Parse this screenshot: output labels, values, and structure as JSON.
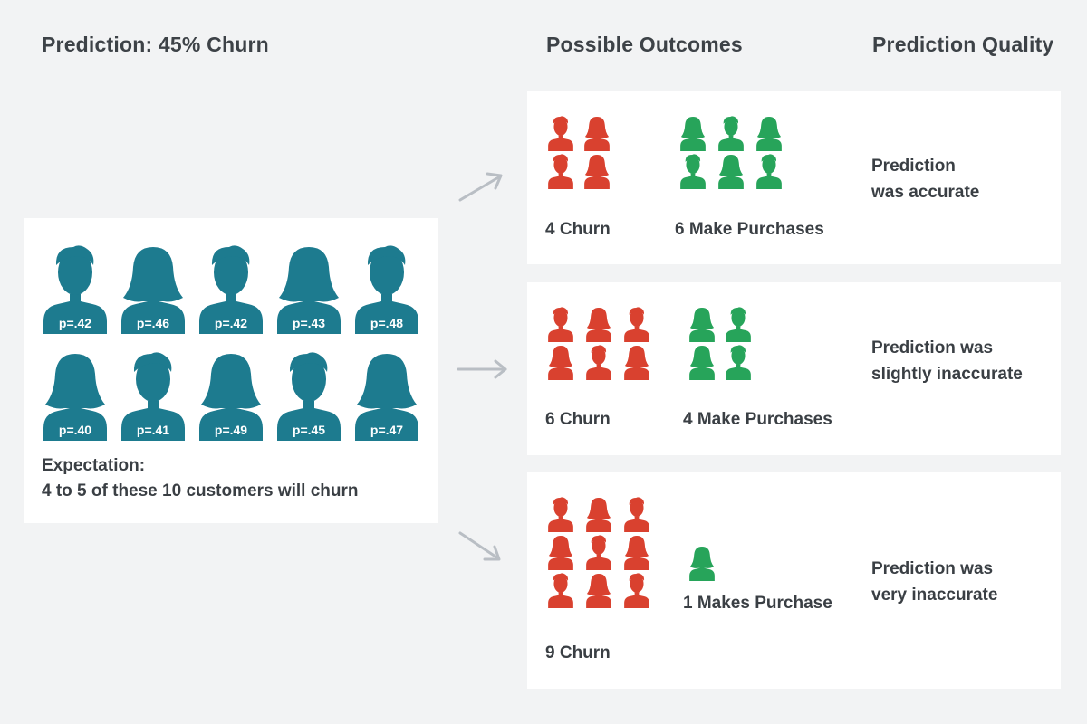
{
  "headings": {
    "prediction": "Prediction: 45% Churn",
    "outcomes": "Possible Outcomes",
    "quality": "Prediction Quality"
  },
  "colors": {
    "customer": "#1d7b8f",
    "churn": "#d9412f",
    "purchase": "#27a45a",
    "arrow": "#b9bec4",
    "panel": "#ffffff",
    "background": "#f2f3f4"
  },
  "customers": [
    {
      "p": "p=.42",
      "icon": "male-icon"
    },
    {
      "p": "p=.46",
      "icon": "female-icon"
    },
    {
      "p": "p=.42",
      "icon": "male-icon"
    },
    {
      "p": "p=.43",
      "icon": "female-icon"
    },
    {
      "p": "p=.48",
      "icon": "male-icon"
    },
    {
      "p": "p=.40",
      "icon": "female-icon"
    },
    {
      "p": "p=.41",
      "icon": "male-icon"
    },
    {
      "p": "p=.49",
      "icon": "female-icon"
    },
    {
      "p": "p=.45",
      "icon": "male-icon"
    },
    {
      "p": "p=.47",
      "icon": "female-icon"
    }
  ],
  "expectation": {
    "line1": "Expectation:",
    "line2": "4 to 5 of these 10 customers will churn"
  },
  "outcomes": [
    {
      "churn_count": 4,
      "purchase_count": 6,
      "churn_label": "4 Churn",
      "purchase_label": "6 Make Purchases",
      "quality_line1": "Prediction",
      "quality_line2": "was accurate"
    },
    {
      "churn_count": 6,
      "purchase_count": 4,
      "churn_label": "6 Churn",
      "purchase_label": "4 Make Purchases",
      "quality_line1": "Prediction was",
      "quality_line2": "slightly inaccurate"
    },
    {
      "churn_count": 9,
      "purchase_count": 1,
      "churn_label": "9 Churn",
      "purchase_label": "1 Makes Purchase",
      "quality_line1": "Prediction was",
      "quality_line2": "very inaccurate"
    }
  ]
}
